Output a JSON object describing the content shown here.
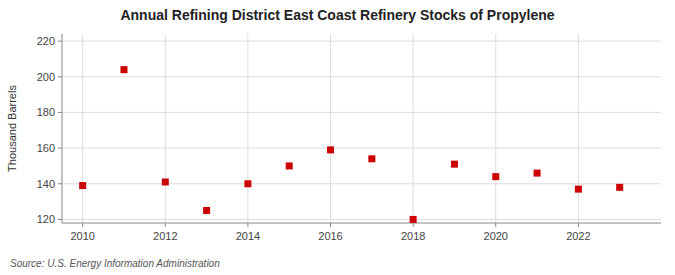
{
  "chart_data": {
    "type": "scatter",
    "title": "Annual Refining District East Coast Refinery Stocks of Propylene",
    "ylabel": "Thousand Barrels",
    "source": "Source: U.S. Energy Information Administration",
    "x": [
      2010,
      2011,
      2012,
      2013,
      2014,
      2015,
      2016,
      2017,
      2018,
      2019,
      2020,
      2021,
      2022,
      2023
    ],
    "values": [
      139,
      204,
      141,
      125,
      140,
      150,
      159,
      154,
      120,
      151,
      144,
      146,
      137,
      138
    ],
    "color": "#cc0000",
    "marker": "square",
    "xlim": [
      2009.5,
      2024.0
    ],
    "ylim": [
      118,
      224
    ],
    "xticks": [
      2010,
      2012,
      2014,
      2016,
      2018,
      2020,
      2022
    ],
    "yticks": [
      120,
      140,
      160,
      180,
      200,
      220
    ],
    "grid": true
  }
}
